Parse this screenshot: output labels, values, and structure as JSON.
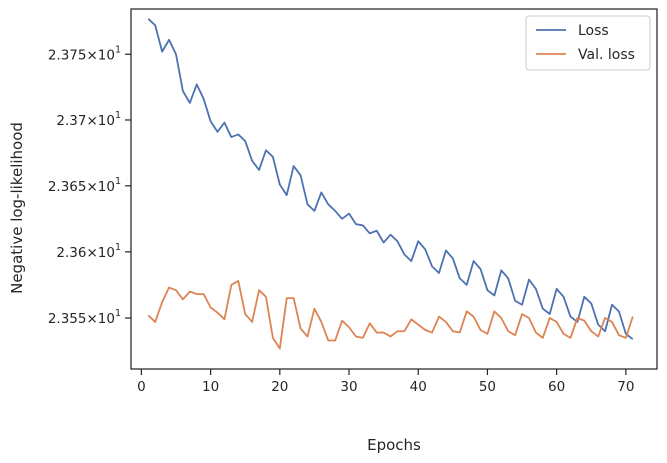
{
  "chart_data": {
    "type": "line",
    "xlabel": "Epochs",
    "ylabel": "Negative log-likelihood",
    "xlim": [
      -1.5,
      74.5
    ],
    "ylim": [
      23.5115,
      23.7845
    ],
    "y_scale": "log",
    "x_ticks": [
      0,
      10,
      20,
      30,
      40,
      50,
      60,
      70
    ],
    "y_ticks": [
      {
        "value": 23.55,
        "mantissa": "2.355",
        "power": "1"
      },
      {
        "value": 23.6,
        "mantissa": "2.36",
        "power": "1"
      },
      {
        "value": 23.65,
        "mantissa": "2.365",
        "power": "1"
      },
      {
        "value": 23.7,
        "mantissa": "2.37",
        "power": "1"
      },
      {
        "value": 23.75,
        "mantissa": "2.375",
        "power": "1"
      }
    ],
    "y_tick_base": "10",
    "legend_position": "top-right",
    "grid": false,
    "x": [
      1,
      2,
      3,
      4,
      5,
      6,
      7,
      8,
      9,
      10,
      11,
      12,
      13,
      14,
      15,
      16,
      17,
      18,
      19,
      20,
      21,
      22,
      23,
      24,
      25,
      26,
      27,
      28,
      29,
      30,
      31,
      32,
      33,
      34,
      35,
      36,
      37,
      38,
      39,
      40,
      41,
      42,
      43,
      44,
      45,
      46,
      47,
      48,
      49,
      50,
      51,
      52,
      53,
      54,
      55,
      56,
      57,
      58,
      59,
      60,
      61,
      62,
      63,
      64,
      65,
      66,
      67,
      68,
      69,
      70,
      71
    ],
    "series": [
      {
        "name": "Loss",
        "color": "#4c72b0",
        "values": [
          23.777,
          23.772,
          23.752,
          23.761,
          23.75,
          23.722,
          23.713,
          23.727,
          23.716,
          23.699,
          23.691,
          23.698,
          23.687,
          23.689,
          23.684,
          23.669,
          23.662,
          23.677,
          23.672,
          23.651,
          23.643,
          23.665,
          23.658,
          23.636,
          23.631,
          23.645,
          23.636,
          23.631,
          23.625,
          23.629,
          23.621,
          23.62,
          23.614,
          23.616,
          23.607,
          23.613,
          23.608,
          23.598,
          23.593,
          23.608,
          23.602,
          23.589,
          23.584,
          23.601,
          23.595,
          23.58,
          23.575,
          23.593,
          23.587,
          23.571,
          23.567,
          23.586,
          23.58,
          23.563,
          23.56,
          23.579,
          23.572,
          23.557,
          23.553,
          23.572,
          23.566,
          23.551,
          23.547,
          23.566,
          23.561,
          23.545,
          23.54,
          23.56,
          23.555,
          23.538,
          23.534
        ]
      },
      {
        "name": "Val. loss",
        "color": "#dd8452",
        "values": [
          23.552,
          23.547,
          23.562,
          23.573,
          23.571,
          23.564,
          23.57,
          23.568,
          23.568,
          23.558,
          23.554,
          23.549,
          23.575,
          23.578,
          23.553,
          23.547,
          23.571,
          23.566,
          23.535,
          23.527,
          23.565,
          23.565,
          23.542,
          23.536,
          23.557,
          23.547,
          23.533,
          23.533,
          23.548,
          23.543,
          23.536,
          23.535,
          23.546,
          23.539,
          23.539,
          23.536,
          23.54,
          23.54,
          23.549,
          23.545,
          23.541,
          23.539,
          23.551,
          23.547,
          23.54,
          23.539,
          23.555,
          23.551,
          23.541,
          23.538,
          23.555,
          23.55,
          23.54,
          23.537,
          23.553,
          23.55,
          23.539,
          23.535,
          23.55,
          23.547,
          23.538,
          23.535,
          23.55,
          23.548,
          23.54,
          23.536,
          23.55,
          23.547,
          23.537,
          23.535,
          23.551
        ]
      }
    ]
  }
}
